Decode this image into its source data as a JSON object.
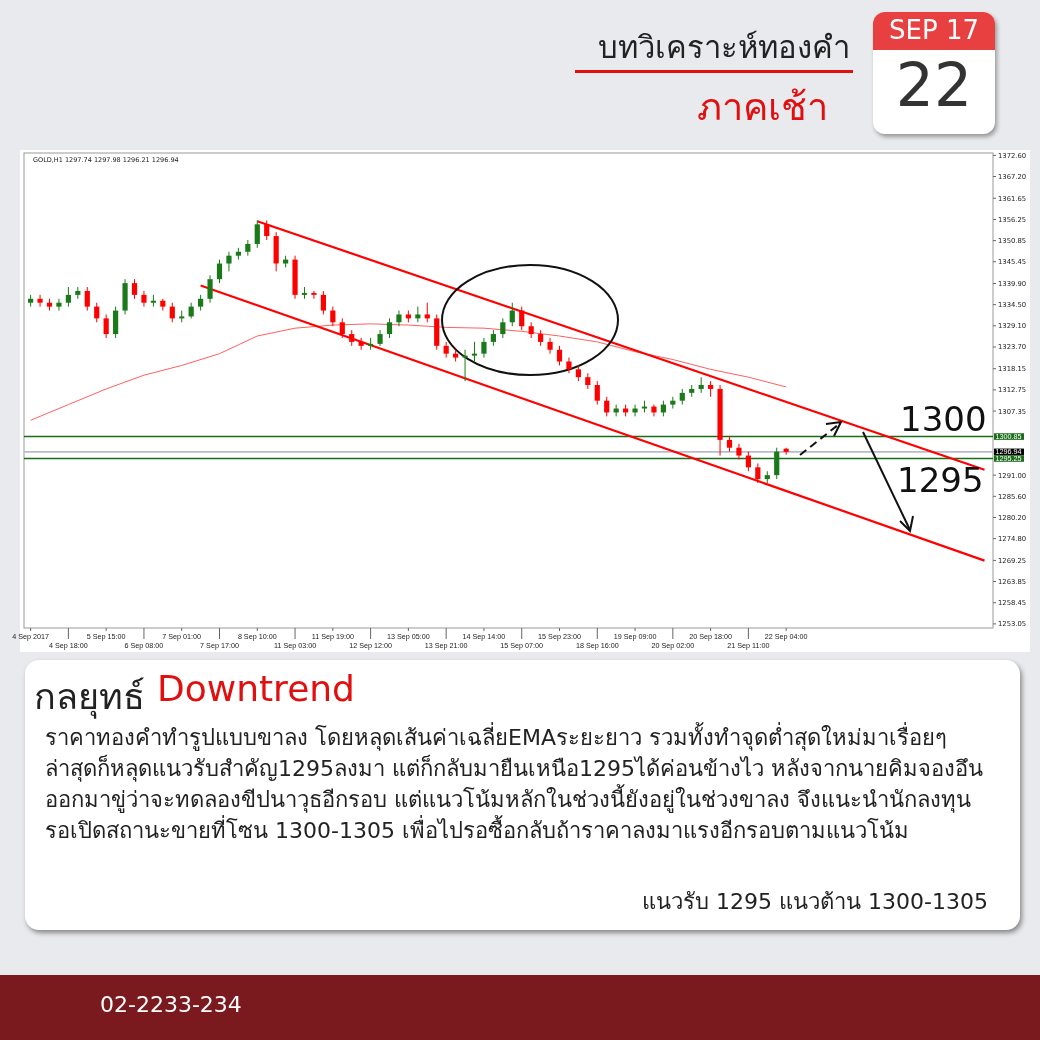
{
  "chart_data": {
    "type": "candlestick",
    "title": "บทวิเคราะห์ทองคำ",
    "subtitle": "ภาคเช้า",
    "categories": [
      "4 Sep 2017",
      null,
      null,
      null,
      "4 Sep 18:00",
      null,
      null,
      null,
      "5 Sep 15:00",
      null,
      null,
      null,
      "6 Sep 08:00",
      null,
      null,
      null,
      "7 Sep 01:00",
      null,
      null,
      null,
      "7 Sep 17:00",
      null,
      null,
      null,
      "8 Sep 10:00",
      null,
      null,
      null,
      "11 Sep 03:00",
      null,
      null,
      null,
      "11 Sep 19:00",
      null,
      null,
      null,
      "12 Sep 12:00",
      null,
      null,
      null,
      "13 Sep 05:00",
      null,
      null,
      null,
      "13 Sep 21:00",
      null,
      null,
      null,
      "14 Sep 14:00",
      null,
      null,
      null,
      "15 Sep 07:00",
      null,
      null,
      null,
      "15 Sep 23:00",
      null,
      null,
      null,
      "18 Sep 16:00",
      null,
      null,
      null,
      "19 Sep 09:00",
      null,
      null,
      null,
      "20 Sep 02:00",
      null,
      null,
      null,
      "20 Sep 18:00",
      null,
      null,
      null,
      "21 Sep 11:00",
      null,
      null,
      null,
      "22 Sep 04:00",
      null,
      null,
      null,
      null,
      null,
      null,
      null,
      null,
      null,
      null,
      null,
      null,
      null,
      null,
      null,
      null,
      null,
      null,
      null,
      null,
      null
    ],
    "ylim": [
      1252,
      1373.2
    ],
    "yticks": [
      {
        "value": 1372.6,
        "label": "1372.60"
      },
      {
        "value": 1367.2,
        "label": "1367.20"
      },
      {
        "value": 1361.65,
        "label": "1361.65"
      },
      {
        "value": 1356.25,
        "label": "1356.25"
      },
      {
        "value": 1350.85,
        "label": "1350.85"
      },
      {
        "value": 1345.45,
        "label": "1345.45"
      },
      {
        "value": 1339.9,
        "label": "1339.90"
      },
      {
        "value": 1334.5,
        "label": "1334.50"
      },
      {
        "value": 1329.1,
        "label": "1329.10"
      },
      {
        "value": 1323.7,
        "label": "1323.70"
      },
      {
        "value": 1318.15,
        "label": "1318.15"
      },
      {
        "value": 1312.75,
        "label": "1312.75"
      },
      {
        "value": 1307.35,
        "label": "1307.35"
      },
      {
        "value": 1291.0,
        "label": "1291.00"
      },
      {
        "value": 1285.6,
        "label": "1285.60"
      },
      {
        "value": 1280.2,
        "label": "1280.20"
      },
      {
        "value": 1274.8,
        "label": "1274.80"
      },
      {
        "value": 1269.25,
        "label": "1269.25"
      },
      {
        "value": 1263.85,
        "label": "1263.85"
      },
      {
        "value": 1258.45,
        "label": "1258.45"
      },
      {
        "value": 1253.05,
        "label": "1253.05"
      }
    ],
    "ref_lines": [
      {
        "axis": "y",
        "value": 1300.85,
        "label": "1300.85",
        "color": "#1a6e1a"
      },
      {
        "axis": "y",
        "value": 1296.94,
        "label": "1296.94",
        "color": "#b8bcc8"
      },
      {
        "axis": "y",
        "value": 1295.25,
        "label": "1295.25",
        "color": "#1a6e1a"
      }
    ],
    "series": [
      {
        "type": "line",
        "color": "#ff6060",
        "values": [
          1305,
          null,
          null,
          null,
          1309,
          null,
          null,
          null,
          1313,
          null,
          null,
          null,
          1316.5,
          null,
          null,
          null,
          1319,
          null,
          null,
          null,
          1322,
          null,
          null,
          null,
          1326.5,
          null,
          null,
          null,
          1328.5,
          null,
          null,
          null,
          1329.3,
          null,
          null,
          null,
          1329.6,
          null,
          null,
          null,
          1329.3,
          null,
          null,
          null,
          1328.7,
          null,
          null,
          null,
          1328.5,
          null,
          null,
          null,
          1327.7,
          null,
          null,
          null,
          1326.5,
          null,
          null,
          null,
          1325,
          null,
          null,
          null,
          1322.5,
          null,
          null,
          null,
          1320.5,
          null,
          null,
          null,
          1318,
          null,
          null,
          null,
          1316,
          null,
          null,
          null,
          1313.5,
          null,
          null,
          null,
          null,
          null,
          null,
          null,
          null,
          null,
          null,
          null,
          null,
          null,
          null,
          null,
          null,
          null,
          null,
          null,
          null,
          null
        ]
      },
      {
        "type": "line",
        "color": "#ff0000",
        "values": [
          null,
          null,
          null,
          null,
          null,
          null,
          null,
          null,
          null,
          null,
          null,
          null,
          null,
          null,
          null,
          null,
          null,
          null,
          null,
          null,
          null,
          null,
          null,
          null,
          1355.8,
          null,
          null,
          null,
          null,
          null,
          null,
          null,
          null,
          null,
          null,
          null,
          null,
          null,
          null,
          null,
          null,
          null,
          null,
          null,
          null,
          null,
          null,
          null,
          null,
          null,
          null,
          null,
          null,
          null,
          null,
          null,
          null,
          null,
          null,
          null,
          null,
          null,
          null,
          null,
          null,
          null,
          null,
          null,
          null,
          null,
          null,
          null,
          null,
          null,
          null,
          null,
          null,
          null,
          null,
          null,
          null,
          null,
          null,
          null,
          null,
          null,
          null,
          null,
          null,
          null,
          null,
          null,
          null,
          null,
          null,
          null,
          null,
          null,
          null,
          null,
          null,
          1292.4
        ]
      },
      {
        "type": "line",
        "color": "#ff0000",
        "values": [
          null,
          null,
          null,
          null,
          null,
          null,
          null,
          null,
          null,
          null,
          null,
          null,
          null,
          null,
          null,
          null,
          null,
          null,
          1339.4,
          null,
          null,
          null,
          null,
          null,
          null,
          null,
          null,
          null,
          null,
          null,
          null,
          null,
          null,
          null,
          null,
          null,
          null,
          null,
          null,
          null,
          null,
          null,
          null,
          null,
          null,
          null,
          null,
          null,
          null,
          null,
          null,
          null,
          null,
          null,
          null,
          null,
          null,
          null,
          null,
          null,
          null,
          null,
          null,
          null,
          null,
          null,
          null,
          null,
          null,
          null,
          null,
          null,
          null,
          null,
          null,
          null,
          null,
          null,
          null,
          null,
          null,
          null,
          null,
          null,
          null,
          null,
          null,
          null,
          null,
          null,
          null,
          null,
          null,
          null,
          null,
          null,
          null,
          null,
          null,
          null,
          null,
          1269.2
        ]
      },
      {
        "type": "candlestick",
        "ohlc": [
          [
            1335,
            1337,
            1334,
            1336
          ],
          [
            1336,
            1337,
            1334,
            1335
          ],
          [
            1335,
            1336,
            1333,
            1334
          ],
          [
            1334,
            1336,
            1333,
            1335
          ],
          [
            1335,
            1339,
            1334,
            1337
          ],
          [
            1337,
            1339,
            1336,
            1338
          ],
          [
            1338,
            1339,
            1333,
            1334
          ],
          [
            1334,
            1335,
            1330,
            1331
          ],
          [
            1331,
            1332,
            1326,
            1327
          ],
          [
            1327,
            1334,
            1326,
            1333
          ],
          [
            1333,
            1341,
            1332,
            1340
          ],
          [
            1340,
            1341,
            1336,
            1337
          ],
          [
            1337,
            1338,
            1334,
            1335
          ],
          [
            1335,
            1337,
            1334,
            1335.5
          ],
          [
            1335.5,
            1336,
            1333,
            1334
          ],
          [
            1334,
            1335,
            1330,
            1331
          ],
          [
            1331,
            1333,
            1330,
            1331.5
          ],
          [
            1331.5,
            1335,
            1331,
            1334
          ],
          [
            1334,
            1337,
            1333,
            1336
          ],
          [
            1336,
            1342,
            1335,
            1341
          ],
          [
            1341,
            1346,
            1340,
            1345
          ],
          [
            1345,
            1348,
            1343,
            1347
          ],
          [
            1347,
            1349,
            1346,
            1348
          ],
          [
            1348,
            1351,
            1347,
            1350
          ],
          [
            1350,
            1356,
            1349,
            1355
          ],
          [
            1355,
            1356,
            1351,
            1352
          ],
          [
            1352,
            1353,
            1343,
            1345
          ],
          [
            1345,
            1347,
            1344,
            1346
          ],
          [
            1346,
            1347,
            1336,
            1337
          ],
          [
            1337,
            1339,
            1336,
            1337.5
          ],
          [
            1337.5,
            1338,
            1336,
            1337
          ],
          [
            1337,
            1338,
            1332,
            1333
          ],
          [
            1333,
            1334,
            1329,
            1330
          ],
          [
            1330,
            1331,
            1326,
            1327
          ],
          [
            1327,
            1328,
            1324,
            1325
          ],
          [
            1325,
            1326,
            1323,
            1324
          ],
          [
            1324,
            1326,
            1323,
            1324.5
          ],
          [
            1324.5,
            1328,
            1324,
            1327
          ],
          [
            1327,
            1331,
            1326,
            1330
          ],
          [
            1330,
            1333,
            1329,
            1332
          ],
          [
            1332,
            1333,
            1330,
            1331
          ],
          [
            1331,
            1334,
            1330,
            1332
          ],
          [
            1332,
            1335,
            1330,
            1331
          ],
          [
            1331,
            1332,
            1323,
            1324
          ],
          [
            1324,
            1325,
            1321,
            1322
          ],
          [
            1322,
            1323,
            1320,
            1321
          ],
          [
            1321,
            1323,
            1315,
            1321.5
          ],
          [
            1321.5,
            1325,
            1320,
            1322
          ],
          [
            1322,
            1326,
            1321,
            1325
          ],
          [
            1325,
            1328,
            1324,
            1327
          ],
          [
            1327,
            1331,
            1326,
            1330
          ],
          [
            1330,
            1335,
            1329,
            1333
          ],
          [
            1333,
            1334,
            1328,
            1329
          ],
          [
            1329,
            1330,
            1326,
            1327
          ],
          [
            1327,
            1328,
            1324,
            1325
          ],
          [
            1325,
            1326,
            1322,
            1323
          ],
          [
            1323,
            1324,
            1319,
            1320
          ],
          [
            1320,
            1321,
            1317,
            1318
          ],
          [
            1318,
            1319,
            1315,
            1316
          ],
          [
            1316,
            1317,
            1313,
            1314
          ],
          [
            1314,
            1315,
            1309,
            1310
          ],
          [
            1310,
            1311,
            1306,
            1307
          ],
          [
            1307,
            1309,
            1306,
            1308
          ],
          [
            1308,
            1309,
            1306,
            1307
          ],
          [
            1307,
            1309,
            1306,
            1308
          ],
          [
            1308,
            1310,
            1307,
            1308.5
          ],
          [
            1308.5,
            1309,
            1306,
            1307
          ],
          [
            1307,
            1310,
            1306,
            1309
          ],
          [
            1309,
            1311,
            1308,
            1310
          ],
          [
            1310,
            1313,
            1309,
            1312
          ],
          [
            1312,
            1314,
            1311,
            1313
          ],
          [
            1313,
            1316,
            1312,
            1314
          ],
          [
            1314,
            1315,
            1311,
            1313
          ],
          [
            1313,
            1314,
            1296,
            1300
          ],
          [
            1300,
            1301,
            1297,
            1298
          ],
          [
            1298,
            1299,
            1295,
            1296
          ],
          [
            1296,
            1297,
            1292,
            1293
          ],
          [
            1293,
            1294,
            1289,
            1290
          ],
          [
            1290,
            1292,
            1289,
            1291
          ],
          [
            1291,
            1298,
            1290,
            1297
          ],
          [
            1297.74,
            1297.98,
            1296.21,
            1296.94
          ],
          null,
          null,
          null,
          null,
          null,
          null,
          null,
          null,
          null,
          null,
          null,
          null,
          null,
          null,
          null,
          null,
          null,
          null,
          null,
          null,
          null
        ],
        "colors": [
          "#1a7a1a",
          "#ff0000",
          "#ff0000",
          "#1a7a1a",
          "#1a7a1a",
          "#1a7a1a",
          "#ff0000",
          "#ff0000",
          "#ff0000",
          "#1a7a1a",
          "#1a7a1a",
          "#ff0000",
          "#ff0000",
          "#1a7a1a",
          "#ff0000",
          "#ff0000",
          "#1a7a1a",
          "#1a7a1a",
          "#1a7a1a",
          "#1a7a1a",
          "#1a7a1a",
          "#1a7a1a",
          "#1a7a1a",
          "#1a7a1a",
          "#1a7a1a",
          "#ff0000",
          "#ff0000",
          "#1a7a1a",
          "#ff0000",
          "#1a7a1a",
          "#ff0000",
          "#ff0000",
          "#ff0000",
          "#ff0000",
          "#ff0000",
          "#ff0000",
          "#1a7a1a",
          "#1a7a1a",
          "#1a7a1a",
          "#1a7a1a",
          "#ff0000",
          "#1a7a1a",
          "#ff0000",
          "#ff0000",
          "#ff0000",
          "#ff0000",
          "#1a7a1a",
          "#1a7a1a",
          "#1a7a1a",
          "#1a7a1a",
          "#1a7a1a",
          "#1a7a1a",
          "#ff0000",
          "#ff0000",
          "#ff0000",
          "#ff0000",
          "#ff0000",
          "#ff0000",
          "#ff0000",
          "#ff0000",
          "#ff0000",
          "#ff0000",
          "#1a7a1a",
          "#ff0000",
          "#1a7a1a",
          "#1a7a1a",
          "#ff0000",
          "#1a7a1a",
          "#1a7a1a",
          "#1a7a1a",
          "#1a7a1a",
          "#1a7a1a",
          "#ff0000",
          "#ff0000",
          "#ff0000",
          "#ff0000",
          "#ff0000",
          "#ff0000",
          "#1a7a1a",
          "#1a7a1a",
          "#ff0000",
          null,
          null,
          null,
          null,
          null,
          null,
          null,
          null,
          null,
          null,
          null,
          null,
          null,
          null,
          null,
          null,
          null,
          null,
          null,
          null,
          null
        ]
      }
    ],
    "annotations": [
      "GOLD,H1 1297.74 1297.98 1296.21 1296.94",
      {
        "text": "1300",
        "y": 1300
      },
      {
        "text": "1295",
        "y": 1295
      },
      "SEP 17",
      "22",
      "กลยุทธ์",
      "Downtrend",
      "ราคาทองคำทำรูปแบบขาลง โดยหลุดเส้นค่าเฉลี่ยEMAระยะยาว รวมทั้งทำจุดต่ำสุดใหม่มาเรื่อยๆ ล่าสุดก็หลุดแนวรับสำคัญ1295ลงมา แต่ก็กลับมายืนเหนือ1295ได้ค่อนข้างไว หลังจากนายคิมจองอึนออกมาขู่ว่าจะทดลองขีปนาวุธอีกรอบ แต่แนวโน้มหลักในช่วงนี้ยังอยู่ในช่วงขาลง จึงแนะนำนักลงทุนรอเปิดสถานะขายที่โซน 1300-1305 เพื่อไปรอซื้อกลับถ้าราคาลงมาแรงอีกรอบตามแนวโน้ม",
      "แนวรับ 1295 แนวต้าน 1300-1305",
      "02-2233-234"
    ]
  }
}
